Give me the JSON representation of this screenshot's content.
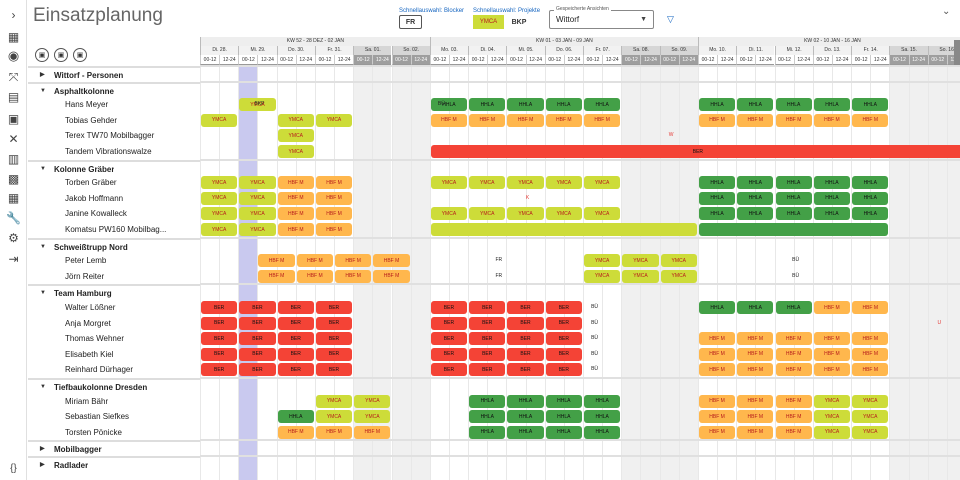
{
  "title": "Einsatzplanung",
  "quick": {
    "blocker_label": "Schnellauswahl: Blocker",
    "blocker_value": "FR",
    "project_label": "Schnellauswahl: Projekte",
    "project_values": [
      "YMCA",
      "BKP"
    ]
  },
  "saved": {
    "label": "Gespeicherte Ansichten",
    "value": "Wittorf"
  },
  "colors": {
    "ymca": "#cddc39",
    "hbf": "#ffb74d",
    "hhla": "#43a047",
    "ber": "#f44336",
    "today": "#c9c9ef",
    "weekend": "#9e9e9e"
  },
  "weeks": [
    "KW 52 - 28 DEZ - 02 JAN",
    "KW 01 - 03 JAN - 09 JAN",
    "KW 02 - 10 JAN - 16 JAN"
  ],
  "days": [
    "Di. 28.",
    "Mi. 29.",
    "Do. 30.",
    "Fr. 31.",
    "Sa. 01.",
    "So. 02.",
    "Mo. 03.",
    "Di. 04.",
    "Mi. 05.",
    "Do. 06.",
    "Fr. 07.",
    "Sa. 08.",
    "So. 09.",
    "Mo. 10.",
    "Di. 11.",
    "Mi. 12.",
    "Do. 13.",
    "Fr. 14.",
    "Sa. 15.",
    "So. 16."
  ],
  "slots": [
    "00-12",
    "12-24"
  ],
  "rows": [
    {
      "t": "g",
      "name": "Wittorf - Personen",
      "open": false
    },
    {
      "t": "g",
      "name": "Asphaltkolonne",
      "open": true
    },
    {
      "t": "r",
      "name": "Hans Meyer",
      "bars": [
        [
          2,
          4,
          "ymca",
          "YMCA"
        ],
        [
          12,
          14,
          "hhla",
          "HHLA"
        ],
        [
          14,
          16,
          "hhla",
          "HHLA"
        ],
        [
          16,
          18,
          "hhla",
          "HHLA"
        ],
        [
          18,
          20,
          "hhla",
          "HHLA"
        ],
        [
          20,
          22,
          "hhla",
          "HHLA"
        ],
        [
          26,
          28,
          "hhla",
          "HHLA"
        ],
        [
          28,
          30,
          "hhla",
          "HHLA"
        ],
        [
          30,
          32,
          "hhla",
          "HHLA"
        ],
        [
          32,
          34,
          "hhla",
          "HHLA"
        ],
        [
          34,
          36,
          "hhla",
          "HHLA"
        ]
      ],
      "tx": [
        [
          2,
          4,
          "BKP",
          false
        ],
        [
          12,
          13,
          "BÜ",
          false
        ]
      ]
    },
    {
      "t": "r",
      "name": "Tobias Gehder",
      "bars": [
        [
          0,
          2,
          "ymca",
          "YMCA"
        ],
        [
          4,
          6,
          "ymca",
          "YMCA"
        ],
        [
          6,
          8,
          "ymca",
          "YMCA"
        ],
        [
          12,
          14,
          "hbf",
          "HBF M"
        ],
        [
          14,
          16,
          "hbf",
          "HBF M"
        ],
        [
          16,
          18,
          "hbf",
          "HBF M"
        ],
        [
          18,
          20,
          "hbf",
          "HBF M"
        ],
        [
          20,
          22,
          "hbf",
          "HBF M"
        ],
        [
          26,
          28,
          "hbf",
          "HBF M"
        ],
        [
          28,
          30,
          "hbf",
          "HBF M"
        ],
        [
          30,
          32,
          "hbf",
          "HBF M"
        ],
        [
          32,
          34,
          "hbf",
          "HBF M"
        ],
        [
          34,
          36,
          "hbf",
          "HBF M"
        ]
      ],
      "tx": []
    },
    {
      "t": "r",
      "name": "Terex TW70 Mobilbagger",
      "bars": [
        [
          4,
          6,
          "ymca",
          "YMCA"
        ]
      ],
      "tx": [
        [
          24,
          25,
          "W",
          true
        ]
      ]
    },
    {
      "t": "r",
      "name": "Tandem Vibrationswalze",
      "bars": [
        [
          4,
          6,
          "ymca",
          "YMCA"
        ],
        [
          12,
          40,
          "ber",
          "BER"
        ]
      ],
      "tx": []
    },
    {
      "t": "g",
      "name": "Kolonne Gräber",
      "open": true
    },
    {
      "t": "r",
      "name": "Torben Gräber",
      "bars": [
        [
          0,
          2,
          "ymca",
          "YMCA"
        ],
        [
          2,
          4,
          "ymca",
          "YMCA"
        ],
        [
          4,
          6,
          "hbf",
          "HBF M"
        ],
        [
          6,
          8,
          "hbf",
          "HBF M"
        ],
        [
          12,
          14,
          "ymca",
          "YMCA"
        ],
        [
          14,
          16,
          "ymca",
          "YMCA"
        ],
        [
          16,
          18,
          "ymca",
          "YMCA"
        ],
        [
          18,
          20,
          "ymca",
          "YMCA"
        ],
        [
          20,
          22,
          "ymca",
          "YMCA"
        ],
        [
          26,
          28,
          "hhla",
          "HHLA"
        ],
        [
          28,
          30,
          "hhla",
          "HHLA"
        ],
        [
          30,
          32,
          "hhla",
          "HHLA"
        ],
        [
          32,
          34,
          "hhla",
          "HHLA"
        ],
        [
          34,
          36,
          "hhla",
          "HHLA"
        ]
      ],
      "tx": []
    },
    {
      "t": "r",
      "name": "Jakob Hoffmann",
      "bars": [
        [
          0,
          2,
          "ymca",
          "YMCA"
        ],
        [
          2,
          4,
          "ymca",
          "YMCA"
        ],
        [
          4,
          6,
          "hbf",
          "HBF M"
        ],
        [
          6,
          8,
          "hbf",
          "HBF M"
        ],
        [
          26,
          28,
          "hhla",
          "HHLA"
        ],
        [
          28,
          30,
          "hhla",
          "HHLA"
        ],
        [
          30,
          32,
          "hhla",
          "HHLA"
        ],
        [
          32,
          34,
          "hhla",
          "HHLA"
        ],
        [
          34,
          36,
          "hhla",
          "HHLA"
        ]
      ],
      "tx": [
        [
          16,
          18,
          "K",
          true
        ]
      ]
    },
    {
      "t": "r",
      "name": "Janine Kowalleck",
      "bars": [
        [
          0,
          2,
          "ymca",
          "YMCA"
        ],
        [
          2,
          4,
          "ymca",
          "YMCA"
        ],
        [
          4,
          6,
          "hbf",
          "HBF M"
        ],
        [
          6,
          8,
          "hbf",
          "HBF M"
        ],
        [
          12,
          14,
          "ymca",
          "YMCA"
        ],
        [
          14,
          16,
          "ymca",
          "YMCA"
        ],
        [
          16,
          18,
          "ymca",
          "YMCA"
        ],
        [
          18,
          20,
          "ymca",
          "YMCA"
        ],
        [
          20,
          22,
          "ymca",
          "YMCA"
        ],
        [
          26,
          28,
          "hhla",
          "HHLA"
        ],
        [
          28,
          30,
          "hhla",
          "HHLA"
        ],
        [
          30,
          32,
          "hhla",
          "HHLA"
        ],
        [
          32,
          34,
          "hhla",
          "HHLA"
        ],
        [
          34,
          36,
          "hhla",
          "HHLA"
        ]
      ],
      "tx": []
    },
    {
      "t": "r",
      "name": "Komatsu PW160 Mobilbag...",
      "bars": [
        [
          0,
          2,
          "ymca",
          "YMCA"
        ],
        [
          2,
          4,
          "ymca",
          "YMCA"
        ],
        [
          4,
          6,
          "hbf",
          "HBF M"
        ],
        [
          6,
          8,
          "hbf",
          "HBF M"
        ],
        [
          12,
          26,
          "ymca",
          ""
        ],
        [
          26,
          36,
          "hhla",
          ""
        ]
      ],
      "tx": []
    },
    {
      "t": "g",
      "name": "Schweißtrupp Nord",
      "open": true
    },
    {
      "t": "r",
      "name": "Peter Lemb",
      "bars": [
        [
          3,
          5,
          "hbf",
          "HBF M"
        ],
        [
          5,
          7,
          "hbf",
          "HBF M"
        ],
        [
          7,
          9,
          "hbf",
          "HBF M"
        ],
        [
          9,
          11,
          "hbf",
          "HBF M"
        ],
        [
          20,
          22,
          "ymca",
          "YMCA"
        ],
        [
          22,
          24,
          "ymca",
          "YMCA"
        ],
        [
          24,
          26,
          "ymca",
          "YMCA"
        ]
      ],
      "tx": [
        [
          15,
          16,
          "FR",
          false
        ],
        [
          30,
          32,
          "BÜ",
          false
        ]
      ]
    },
    {
      "t": "r",
      "name": "Jörn Reiter",
      "bars": [
        [
          3,
          5,
          "hbf",
          "HBF M"
        ],
        [
          5,
          7,
          "hbf",
          "HBF M"
        ],
        [
          7,
          9,
          "hbf",
          "HBF M"
        ],
        [
          9,
          11,
          "hbf",
          "HBF M"
        ],
        [
          20,
          22,
          "ymca",
          "YMCA"
        ],
        [
          22,
          24,
          "ymca",
          "YMCA"
        ],
        [
          24,
          26,
          "ymca",
          "YMCA"
        ]
      ],
      "tx": [
        [
          15,
          16,
          "FR",
          false
        ],
        [
          30,
          32,
          "BÜ",
          false
        ]
      ]
    },
    {
      "t": "g",
      "name": "Team Hamburg",
      "open": true
    },
    {
      "t": "r",
      "name": "Walter Lößner",
      "bars": [
        [
          0,
          2,
          "ber",
          "BER"
        ],
        [
          2,
          4,
          "ber",
          "BER"
        ],
        [
          4,
          6,
          "ber",
          "BER"
        ],
        [
          6,
          8,
          "ber",
          "BER"
        ],
        [
          12,
          14,
          "ber",
          "BER"
        ],
        [
          14,
          16,
          "ber",
          "BER"
        ],
        [
          16,
          18,
          "ber",
          "BER"
        ],
        [
          18,
          20,
          "ber",
          "BER"
        ],
        [
          26,
          28,
          "hhla",
          "HHLA"
        ],
        [
          28,
          30,
          "hhla",
          "HHLA"
        ],
        [
          30,
          32,
          "hhla",
          "HHLA"
        ],
        [
          32,
          34,
          "hbf",
          "HBF M"
        ],
        [
          34,
          36,
          "hbf",
          "HBF M"
        ]
      ],
      "tx": [
        [
          20,
          21,
          "BÜ",
          false
        ]
      ]
    },
    {
      "t": "r",
      "name": "Anja Morgret",
      "bars": [
        [
          0,
          2,
          "ber",
          "BER"
        ],
        [
          2,
          4,
          "ber",
          "BER"
        ],
        [
          4,
          6,
          "ber",
          "BER"
        ],
        [
          6,
          8,
          "ber",
          "BER"
        ],
        [
          12,
          14,
          "ber",
          "BER"
        ],
        [
          14,
          16,
          "ber",
          "BER"
        ],
        [
          16,
          18,
          "ber",
          "BER"
        ],
        [
          18,
          20,
          "ber",
          "BER"
        ]
      ],
      "tx": [
        [
          20,
          21,
          "BÜ",
          false
        ],
        [
          38,
          39,
          "U",
          true
        ]
      ]
    },
    {
      "t": "r",
      "name": "Thomas Wehner",
      "bars": [
        [
          0,
          2,
          "ber",
          "BER"
        ],
        [
          2,
          4,
          "ber",
          "BER"
        ],
        [
          4,
          6,
          "ber",
          "BER"
        ],
        [
          6,
          8,
          "ber",
          "BER"
        ],
        [
          12,
          14,
          "ber",
          "BER"
        ],
        [
          14,
          16,
          "ber",
          "BER"
        ],
        [
          16,
          18,
          "ber",
          "BER"
        ],
        [
          18,
          20,
          "ber",
          "BER"
        ],
        [
          26,
          28,
          "hbf",
          "HBF M"
        ],
        [
          28,
          30,
          "hbf",
          "HBF M"
        ],
        [
          30,
          32,
          "hbf",
          "HBF M"
        ],
        [
          32,
          34,
          "hbf",
          "HBF M"
        ],
        [
          34,
          36,
          "hbf",
          "HBF M"
        ]
      ],
      "tx": [
        [
          20,
          21,
          "BÜ",
          false
        ]
      ]
    },
    {
      "t": "r",
      "name": "Elisabeth Kiel",
      "bars": [
        [
          0,
          2,
          "ber",
          "BER"
        ],
        [
          2,
          4,
          "ber",
          "BER"
        ],
        [
          4,
          6,
          "ber",
          "BER"
        ],
        [
          6,
          8,
          "ber",
          "BER"
        ],
        [
          12,
          14,
          "ber",
          "BER"
        ],
        [
          14,
          16,
          "ber",
          "BER"
        ],
        [
          16,
          18,
          "ber",
          "BER"
        ],
        [
          18,
          20,
          "ber",
          "BER"
        ],
        [
          26,
          28,
          "hbf",
          "HBF M"
        ],
        [
          28,
          30,
          "hbf",
          "HBF M"
        ],
        [
          30,
          32,
          "hbf",
          "HBF M"
        ],
        [
          32,
          34,
          "hbf",
          "HBF M"
        ],
        [
          34,
          36,
          "hbf",
          "HBF M"
        ]
      ],
      "tx": [
        [
          20,
          21,
          "BÜ",
          false
        ]
      ]
    },
    {
      "t": "r",
      "name": "Reinhard Dürhager",
      "bars": [
        [
          0,
          2,
          "ber",
          "BER"
        ],
        [
          2,
          4,
          "ber",
          "BER"
        ],
        [
          4,
          6,
          "ber",
          "BER"
        ],
        [
          6,
          8,
          "ber",
          "BER"
        ],
        [
          12,
          14,
          "ber",
          "BER"
        ],
        [
          14,
          16,
          "ber",
          "BER"
        ],
        [
          16,
          18,
          "ber",
          "BER"
        ],
        [
          18,
          20,
          "ber",
          "BER"
        ],
        [
          26,
          28,
          "hbf",
          "HBF M"
        ],
        [
          28,
          30,
          "hbf",
          "HBF M"
        ],
        [
          30,
          32,
          "hbf",
          "HBF M"
        ],
        [
          32,
          34,
          "hbf",
          "HBF M"
        ],
        [
          34,
          36,
          "hbf",
          "HBF M"
        ]
      ],
      "tx": [
        [
          20,
          21,
          "BÜ",
          false
        ]
      ]
    },
    {
      "t": "g",
      "name": "Tiefbaukolonne Dresden",
      "open": true
    },
    {
      "t": "r",
      "name": "Miriam Bähr",
      "bars": [
        [
          6,
          8,
          "ymca",
          "YMCA"
        ],
        [
          8,
          10,
          "ymca",
          "YMCA"
        ],
        [
          14,
          16,
          "hhla",
          "HHLA"
        ],
        [
          16,
          18,
          "hhla",
          "HHLA"
        ],
        [
          18,
          20,
          "hhla",
          "HHLA"
        ],
        [
          20,
          22,
          "hhla",
          "HHLA"
        ],
        [
          26,
          28,
          "hbf",
          "HBF M"
        ],
        [
          28,
          30,
          "hbf",
          "HBF M"
        ],
        [
          30,
          32,
          "hbf",
          "HBF M"
        ],
        [
          32,
          34,
          "ymca",
          "YMCA"
        ],
        [
          34,
          36,
          "ymca",
          "YMCA"
        ]
      ],
      "tx": []
    },
    {
      "t": "r",
      "name": "Sebastian Siefkes",
      "bars": [
        [
          4,
          6,
          "hhla",
          "HHLA"
        ],
        [
          6,
          8,
          "ymca",
          "YMCA"
        ],
        [
          8,
          10,
          "ymca",
          "YMCA"
        ],
        [
          14,
          16,
          "hhla",
          "HHLA"
        ],
        [
          16,
          18,
          "hhla",
          "HHLA"
        ],
        [
          18,
          20,
          "hhla",
          "HHLA"
        ],
        [
          20,
          22,
          "hhla",
          "HHLA"
        ],
        [
          26,
          28,
          "hbf",
          "HBF M"
        ],
        [
          28,
          30,
          "hbf",
          "HBF M"
        ],
        [
          30,
          32,
          "hbf",
          "HBF M"
        ],
        [
          32,
          34,
          "ymca",
          "YMCA"
        ],
        [
          34,
          36,
          "ymca",
          "YMCA"
        ]
      ],
      "tx": []
    },
    {
      "t": "r",
      "name": "Torsten Pönicke",
      "bars": [
        [
          4,
          6,
          "hbf",
          "HBF M"
        ],
        [
          6,
          8,
          "hbf",
          "HBF M"
        ],
        [
          8,
          10,
          "hbf",
          "HBF M"
        ],
        [
          14,
          16,
          "hhla",
          "HHLA"
        ],
        [
          16,
          18,
          "hhla",
          "HHLA"
        ],
        [
          18,
          20,
          "hhla",
          "HHLA"
        ],
        [
          20,
          22,
          "hhla",
          "HHLA"
        ],
        [
          26,
          28,
          "hbf",
          "HBF M"
        ],
        [
          28,
          30,
          "hbf",
          "HBF M"
        ],
        [
          30,
          32,
          "hbf",
          "HBF M"
        ],
        [
          32,
          34,
          "ymca",
          "YMCA"
        ],
        [
          34,
          36,
          "ymca",
          "YMCA"
        ]
      ],
      "tx": []
    },
    {
      "t": "g",
      "name": "Mobilbagger",
      "open": false
    },
    {
      "t": "g",
      "name": "Radlader",
      "open": false
    }
  ]
}
